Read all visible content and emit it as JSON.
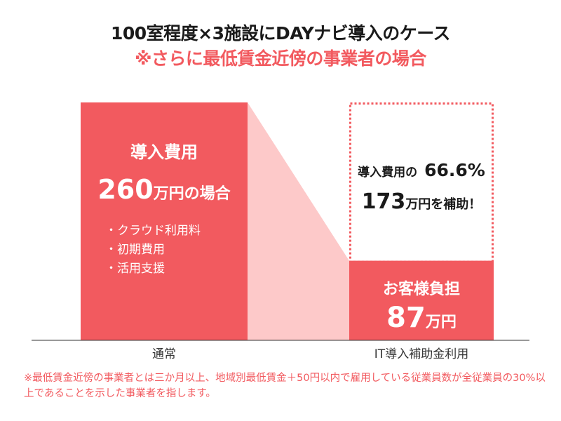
{
  "title": {
    "line1": "100室程度×3施設にDAYナビ導入のケース",
    "line2": "※さらに最低賃金近傍の事業者の場合"
  },
  "colors": {
    "accent": "#f25a5f",
    "accent_light": "#fdc9c9",
    "dotted_border": "#f25a5f",
    "title_red": "#f25a5f",
    "footnote_red": "#f25a5f"
  },
  "chart_data": {
    "type": "bar",
    "categories": [
      "通常",
      "IT導入補助金利用"
    ],
    "values": [
      260,
      87
    ],
    "subsidy_portion": 173,
    "subsidy_rate": "66.6%",
    "unit": "万円",
    "ylim": [
      0,
      260
    ]
  },
  "left_bar": {
    "title": "導入費用",
    "amount": "260",
    "amount_suffix": "万円の場合",
    "items": [
      "クラウド利用料",
      "初期費用",
      "活用支援"
    ]
  },
  "right_bar": {
    "subsidy_label": "導入費用の",
    "subsidy_rate": "66.6%",
    "subsidy_amount": "173",
    "subsidy_suffix": "万円を補助！",
    "customer_title": "お客様負担",
    "customer_amount": "87",
    "customer_unit": "万円"
  },
  "x_labels": [
    "通常",
    "IT導入補助金利用"
  ],
  "footnote": "※最低賃金近傍の事業者とは三か月以上、地域別最低賃金＋50円以内で雇用している従業員数が全従業員の30%以上であることを示した事業者を指します。"
}
